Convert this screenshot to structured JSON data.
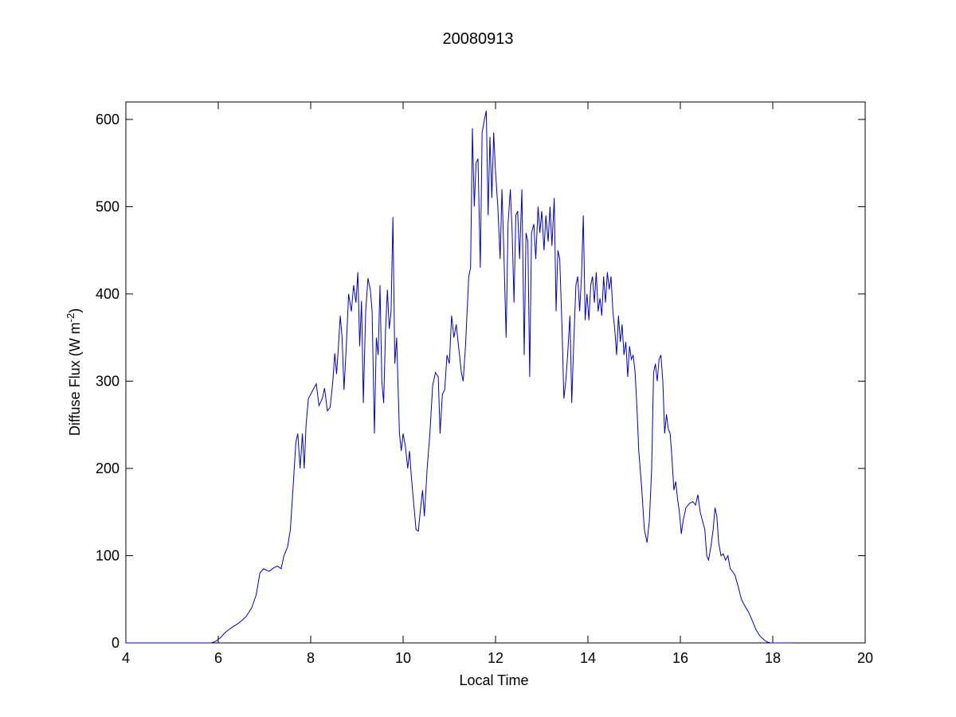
{
  "chart_data": {
    "type": "line",
    "title": "20080913",
    "xlabel": "Local Time",
    "ylabel_main": "Diffuse Flux (W m",
    "ylabel_sup": "-2",
    "ylabel_close": ")",
    "xlim": [
      4,
      20
    ],
    "ylim": [
      0,
      620
    ],
    "xticks": [
      4,
      6,
      8,
      10,
      12,
      14,
      16,
      18,
      20
    ],
    "yticks": [
      0,
      100,
      200,
      300,
      400,
      500,
      600
    ],
    "grid": false,
    "series": [
      {
        "color": "#0000cc",
        "points": [
          [
            4.0,
            0
          ],
          [
            5.85,
            0
          ],
          [
            5.95,
            2
          ],
          [
            6.05,
            6
          ],
          [
            6.15,
            12
          ],
          [
            6.3,
            18
          ],
          [
            6.45,
            23
          ],
          [
            6.6,
            30
          ],
          [
            6.72,
            40
          ],
          [
            6.82,
            55
          ],
          [
            6.9,
            80
          ],
          [
            6.98,
            85
          ],
          [
            7.1,
            82
          ],
          [
            7.2,
            86
          ],
          [
            7.28,
            88
          ],
          [
            7.36,
            85
          ],
          [
            7.42,
            100
          ],
          [
            7.5,
            110
          ],
          [
            7.56,
            130
          ],
          [
            7.62,
            180
          ],
          [
            7.68,
            230
          ],
          [
            7.72,
            240
          ],
          [
            7.77,
            200
          ],
          [
            7.82,
            240
          ],
          [
            7.86,
            200
          ],
          [
            7.9,
            250
          ],
          [
            7.95,
            280
          ],
          [
            8.05,
            290
          ],
          [
            8.12,
            297
          ],
          [
            8.18,
            272
          ],
          [
            8.25,
            280
          ],
          [
            8.3,
            292
          ],
          [
            8.36,
            266
          ],
          [
            8.42,
            270
          ],
          [
            8.48,
            300
          ],
          [
            8.52,
            332
          ],
          [
            8.56,
            308
          ],
          [
            8.6,
            340
          ],
          [
            8.64,
            375
          ],
          [
            8.68,
            350
          ],
          [
            8.72,
            290
          ],
          [
            8.77,
            340
          ],
          [
            8.82,
            400
          ],
          [
            8.88,
            380
          ],
          [
            8.93,
            410
          ],
          [
            8.98,
            390
          ],
          [
            9.02,
            425
          ],
          [
            9.06,
            340
          ],
          [
            9.1,
            392
          ],
          [
            9.14,
            275
          ],
          [
            9.19,
            380
          ],
          [
            9.24,
            418
          ],
          [
            9.29,
            405
          ],
          [
            9.33,
            380
          ],
          [
            9.38,
            240
          ],
          [
            9.42,
            350
          ],
          [
            9.46,
            330
          ],
          [
            9.5,
            410
          ],
          [
            9.54,
            300
          ],
          [
            9.58,
            275
          ],
          [
            9.62,
            360
          ],
          [
            9.66,
            405
          ],
          [
            9.7,
            360
          ],
          [
            9.74,
            380
          ],
          [
            9.78,
            488
          ],
          [
            9.82,
            320
          ],
          [
            9.86,
            350
          ],
          [
            9.92,
            240
          ],
          [
            9.96,
            220
          ],
          [
            10.0,
            240
          ],
          [
            10.05,
            225
          ],
          [
            10.1,
            200
          ],
          [
            10.14,
            220
          ],
          [
            10.18,
            190
          ],
          [
            10.23,
            160
          ],
          [
            10.28,
            130
          ],
          [
            10.33,
            128
          ],
          [
            10.38,
            155
          ],
          [
            10.42,
            175
          ],
          [
            10.46,
            145
          ],
          [
            10.52,
            200
          ],
          [
            10.58,
            240
          ],
          [
            10.64,
            295
          ],
          [
            10.7,
            310
          ],
          [
            10.76,
            305
          ],
          [
            10.8,
            240
          ],
          [
            10.85,
            285
          ],
          [
            10.9,
            290
          ],
          [
            10.95,
            330
          ],
          [
            11.0,
            320
          ],
          [
            11.05,
            375
          ],
          [
            11.1,
            350
          ],
          [
            11.15,
            365
          ],
          [
            11.2,
            340
          ],
          [
            11.26,
            310
          ],
          [
            11.3,
            300
          ],
          [
            11.35,
            340
          ],
          [
            11.42,
            420
          ],
          [
            11.46,
            430
          ],
          [
            11.5,
            590
          ],
          [
            11.54,
            500
          ],
          [
            11.58,
            550
          ],
          [
            11.62,
            555
          ],
          [
            11.67,
            430
          ],
          [
            11.71,
            585
          ],
          [
            11.76,
            600
          ],
          [
            11.8,
            610
          ],
          [
            11.84,
            490
          ],
          [
            11.88,
            580
          ],
          [
            11.92,
            510
          ],
          [
            11.96,
            585
          ],
          [
            12.0,
            540
          ],
          [
            12.05,
            500
          ],
          [
            12.1,
            440
          ],
          [
            12.14,
            520
          ],
          [
            12.18,
            450
          ],
          [
            12.23,
            350
          ],
          [
            12.27,
            480
          ],
          [
            12.32,
            520
          ],
          [
            12.36,
            470
          ],
          [
            12.4,
            390
          ],
          [
            12.44,
            490
          ],
          [
            12.48,
            495
          ],
          [
            12.52,
            440
          ],
          [
            12.57,
            520
          ],
          [
            12.62,
            330
          ],
          [
            12.66,
            470
          ],
          [
            12.7,
            460
          ],
          [
            12.74,
            305
          ],
          [
            12.78,
            470
          ],
          [
            12.83,
            480
          ],
          [
            12.87,
            440
          ],
          [
            12.92,
            500
          ],
          [
            12.96,
            470
          ],
          [
            13.0,
            495
          ],
          [
            13.05,
            450
          ],
          [
            13.09,
            490
          ],
          [
            13.14,
            460
          ],
          [
            13.18,
            500
          ],
          [
            13.22,
            455
          ],
          [
            13.27,
            510
          ],
          [
            13.31,
            380
          ],
          [
            13.35,
            450
          ],
          [
            13.39,
            440
          ],
          [
            13.44,
            360
          ],
          [
            13.48,
            280
          ],
          [
            13.52,
            300
          ],
          [
            13.56,
            330
          ],
          [
            13.61,
            375
          ],
          [
            13.65,
            275
          ],
          [
            13.69,
            340
          ],
          [
            13.74,
            410
          ],
          [
            13.78,
            420
          ],
          [
            13.82,
            380
          ],
          [
            13.86,
            420
          ],
          [
            13.9,
            490
          ],
          [
            13.94,
            370
          ],
          [
            13.98,
            400
          ],
          [
            14.02,
            370
          ],
          [
            14.06,
            410
          ],
          [
            14.1,
            420
          ],
          [
            14.14,
            390
          ],
          [
            14.18,
            425
          ],
          [
            14.22,
            380
          ],
          [
            14.26,
            395
          ],
          [
            14.3,
            375
          ],
          [
            14.34,
            420
          ],
          [
            14.38,
            390
          ],
          [
            14.42,
            425
          ],
          [
            14.46,
            405
          ],
          [
            14.5,
            420
          ],
          [
            14.54,
            380
          ],
          [
            14.58,
            360
          ],
          [
            14.62,
            330
          ],
          [
            14.66,
            375
          ],
          [
            14.7,
            345
          ],
          [
            14.74,
            365
          ],
          [
            14.78,
            330
          ],
          [
            14.82,
            345
          ],
          [
            14.86,
            305
          ],
          [
            14.9,
            340
          ],
          [
            14.94,
            325
          ],
          [
            14.98,
            330
          ],
          [
            15.02,
            310
          ],
          [
            15.06,
            270
          ],
          [
            15.1,
            220
          ],
          [
            15.16,
            180
          ],
          [
            15.22,
            130
          ],
          [
            15.28,
            115
          ],
          [
            15.33,
            140
          ],
          [
            15.38,
            200
          ],
          [
            15.42,
            310
          ],
          [
            15.46,
            320
          ],
          [
            15.5,
            300
          ],
          [
            15.54,
            325
          ],
          [
            15.58,
            330
          ],
          [
            15.62,
            300
          ],
          [
            15.66,
            240
          ],
          [
            15.7,
            262
          ],
          [
            15.74,
            245
          ],
          [
            15.78,
            240
          ],
          [
            15.82,
            210
          ],
          [
            15.86,
            175
          ],
          [
            15.9,
            185
          ],
          [
            15.94,
            165
          ],
          [
            15.98,
            150
          ],
          [
            16.02,
            125
          ],
          [
            16.06,
            140
          ],
          [
            16.12,
            155
          ],
          [
            16.2,
            160
          ],
          [
            16.27,
            162
          ],
          [
            16.33,
            158
          ],
          [
            16.38,
            170
          ],
          [
            16.43,
            150
          ],
          [
            16.48,
            140
          ],
          [
            16.53,
            130
          ],
          [
            16.57,
            100
          ],
          [
            16.61,
            95
          ],
          [
            16.66,
            110
          ],
          [
            16.71,
            130
          ],
          [
            16.75,
            155
          ],
          [
            16.79,
            145
          ],
          [
            16.83,
            115
          ],
          [
            16.88,
            100
          ],
          [
            16.93,
            102
          ],
          [
            16.98,
            95
          ],
          [
            17.03,
            100
          ],
          [
            17.08,
            85
          ],
          [
            17.13,
            82
          ],
          [
            17.18,
            78
          ],
          [
            17.25,
            65
          ],
          [
            17.32,
            50
          ],
          [
            17.4,
            42
          ],
          [
            17.48,
            35
          ],
          [
            17.56,
            25
          ],
          [
            17.64,
            15
          ],
          [
            17.72,
            8
          ],
          [
            17.8,
            4
          ],
          [
            17.88,
            1
          ],
          [
            17.95,
            0
          ],
          [
            18.4,
            0
          ]
        ]
      }
    ]
  }
}
